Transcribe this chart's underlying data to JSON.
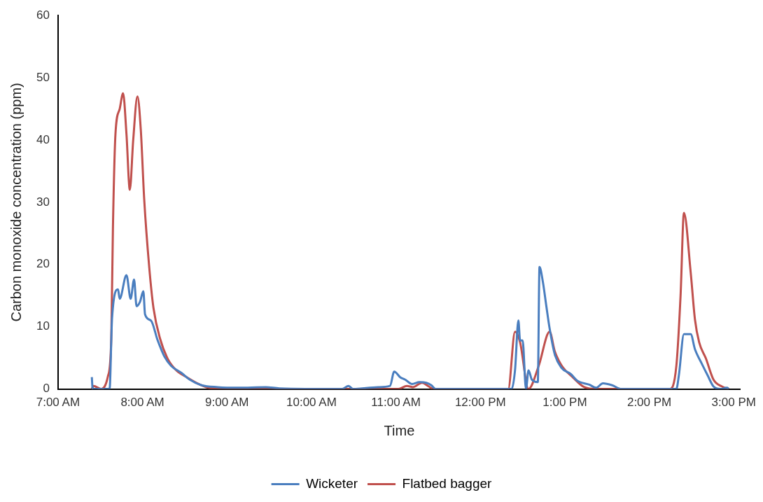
{
  "chart_data": {
    "type": "line",
    "xlabel": "Time",
    "ylabel": "Carbon monoxide concentration (ppm)",
    "xlim": [
      7,
      15.08
    ],
    "ylim": [
      0,
      60
    ],
    "xticks": [
      {
        "value": 7,
        "label": "7:00 AM"
      },
      {
        "value": 8,
        "label": "8:00 AM"
      },
      {
        "value": 9,
        "label": "9:00 AM"
      },
      {
        "value": 10,
        "label": "10:00 AM"
      },
      {
        "value": 11,
        "label": "11:00 AM"
      },
      {
        "value": 12,
        "label": "12:00 PM"
      },
      {
        "value": 13,
        "label": "1:00 PM"
      },
      {
        "value": 14,
        "label": "2:00 PM"
      },
      {
        "value": 15,
        "label": "3:00 PM"
      }
    ],
    "yticks": [
      0,
      10,
      20,
      30,
      40,
      50,
      60
    ],
    "grid": false,
    "legend": "bottom",
    "marker": "none",
    "line_style": "solid",
    "series": [
      {
        "name": "Wicketer",
        "color": "#4a7ebf",
        "x": [
          7.4,
          7.41,
          7.61,
          7.64,
          7.71,
          7.73,
          7.81,
          7.86,
          7.9,
          7.93,
          7.97,
          8.01,
          8.03,
          8.1,
          8.18,
          8.26,
          8.34,
          8.46,
          8.56,
          8.7,
          8.89,
          9.13,
          9.46,
          9.62,
          10.36,
          10.44,
          10.49,
          10.79,
          10.93,
          10.98,
          11.05,
          11.11,
          11.19,
          11.28,
          11.36,
          11.42,
          11.47,
          12.37,
          12.41,
          12.45,
          12.47,
          12.5,
          12.54,
          12.57,
          12.61,
          12.68,
          12.7,
          12.74,
          12.78,
          12.82,
          12.88,
          12.96,
          13.07,
          13.15,
          13.29,
          13.37,
          13.45,
          13.56,
          13.67,
          14.32,
          14.35,
          14.41,
          14.49,
          14.54,
          14.62,
          14.69,
          14.76,
          14.84,
          14.92,
          14.94
        ],
        "values": [
          1.9,
          0,
          0,
          11.5,
          16,
          14.5,
          18.3,
          14.5,
          17.6,
          13.3,
          14,
          15.7,
          12,
          11,
          7.8,
          5.2,
          3.7,
          2.6,
          1.5,
          0.6,
          0.3,
          0.2,
          0.3,
          0.1,
          0,
          0.5,
          0,
          0.3,
          0.5,
          2.8,
          1.9,
          1.5,
          0.8,
          1.1,
          1,
          0.6,
          0,
          0,
          3,
          11,
          7.8,
          7.8,
          0,
          3,
          1.5,
          1.1,
          19.6,
          17.2,
          13.4,
          9.7,
          5.6,
          3.4,
          2.4,
          1.3,
          0.7,
          0.2,
          0.9,
          0.6,
          0,
          0,
          2.2,
          8.8,
          8.8,
          6.4,
          4.1,
          2.2,
          0.4,
          0,
          0.2,
          0
        ]
      },
      {
        "name": "Flatbed bagger",
        "color": "#c0504d",
        "x": [
          7.4,
          7.42,
          7.51,
          7.59,
          7.63,
          7.65,
          7.68,
          7.73,
          7.77,
          7.81,
          7.85,
          7.89,
          7.94,
          7.98,
          8.02,
          8.08,
          8.13,
          8.21,
          8.3,
          8.4,
          8.51,
          8.65,
          8.78,
          8.97,
          11.03,
          11.13,
          11.2,
          11.31,
          11.39,
          11.44,
          12.33,
          12.41,
          12.47,
          12.57,
          12.69,
          12.82,
          12.88,
          12.96,
          13.1,
          13.23,
          13.37,
          14.24,
          14.32,
          14.37,
          14.41,
          14.49,
          14.54,
          14.59,
          14.67,
          14.76,
          14.86,
          14.94
        ],
        "values": [
          0,
          0.5,
          0,
          2,
          8,
          26,
          41,
          45,
          47.5,
          41,
          32,
          40,
          47,
          41.6,
          30.5,
          19.5,
          13,
          8,
          4.8,
          3,
          2,
          0.9,
          0.2,
          0,
          0,
          0.5,
          0.3,
          1,
          0.4,
          0,
          0,
          9.2,
          7.5,
          0,
          3.7,
          9.2,
          6.1,
          3.8,
          1.8,
          0.3,
          0,
          0,
          3.7,
          15,
          28.3,
          18.7,
          11.2,
          7.5,
          4.9,
          1.5,
          0.4,
          0
        ]
      }
    ]
  }
}
